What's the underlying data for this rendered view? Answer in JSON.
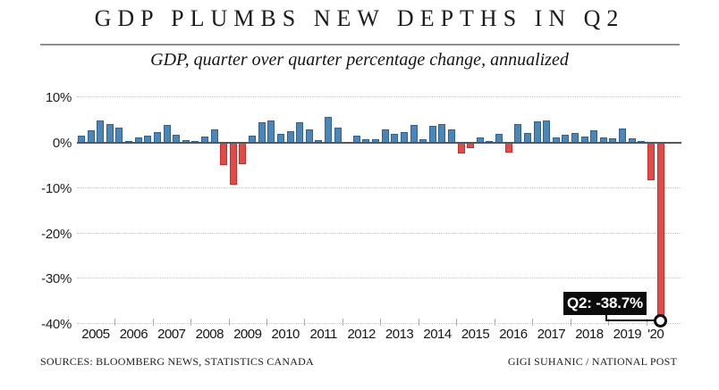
{
  "chart_data": {
    "type": "bar",
    "title": "GDP PLUMBS NEW DEPTHS IN Q2",
    "subtitle": "GDP, quarter over quarter percentage change, annualized",
    "ylim": [
      -42,
      12
    ],
    "grid": "dotted horizontal gridlines at 10% intervals, solid zero axis",
    "legend_position": "none",
    "yticks": [
      {
        "value": 10,
        "label": "10%"
      },
      {
        "value": 0,
        "label": "0%"
      },
      {
        "value": -10,
        "label": "-10%"
      },
      {
        "value": -20,
        "label": "-20%"
      },
      {
        "value": -30,
        "label": "-30%"
      },
      {
        "value": -40,
        "label": "-40%"
      }
    ],
    "gridline_values": [
      10,
      -10,
      -20,
      -30,
      -40
    ],
    "bar_colors": {
      "positive": "#4c86b7",
      "positive_border": "#2f6191",
      "negative": "#e24a47",
      "negative_border": "#c0302f"
    },
    "quarters": [
      "2005 Q1",
      "2005 Q2",
      "2005 Q3",
      "2005 Q4",
      "2006 Q1",
      "2006 Q2",
      "2006 Q3",
      "2006 Q4",
      "2007 Q1",
      "2007 Q2",
      "2007 Q3",
      "2007 Q4",
      "2008 Q1",
      "2008 Q2",
      "2008 Q3",
      "2008 Q4",
      "2009 Q1",
      "2009 Q2",
      "2009 Q3",
      "2009 Q4",
      "2010 Q1",
      "2010 Q2",
      "2010 Q3",
      "2010 Q4",
      "2011 Q1",
      "2011 Q2",
      "2011 Q3",
      "2011 Q4",
      "2012 Q1",
      "2012 Q2",
      "2012 Q3",
      "2012 Q4",
      "2013 Q1",
      "2013 Q2",
      "2013 Q3",
      "2013 Q4",
      "2014 Q1",
      "2014 Q2",
      "2014 Q3",
      "2014 Q4",
      "2015 Q1",
      "2015 Q2",
      "2015 Q3",
      "2015 Q4",
      "2016 Q1",
      "2016 Q2",
      "2016 Q3",
      "2016 Q4",
      "2017 Q1",
      "2017 Q2",
      "2017 Q3",
      "2017 Q4",
      "2018 Q1",
      "2018 Q2",
      "2018 Q3",
      "2018 Q4",
      "2019 Q1",
      "2019 Q2",
      "2019 Q3",
      "2019 Q4",
      "2020 Q1",
      "2020 Q2"
    ],
    "values": [
      1.6,
      2.8,
      5.0,
      4.1,
      3.3,
      0.4,
      1.1,
      1.6,
      2.4,
      3.9,
      1.8,
      0.5,
      0.3,
      1.4,
      2.9,
      -4.9,
      -9.2,
      -4.7,
      1.6,
      4.6,
      4.9,
      2.0,
      2.6,
      4.5,
      2.9,
      0.5,
      5.7,
      3.3,
      0.2,
      1.6,
      0.8,
      0.8,
      2.9,
      2.0,
      2.4,
      4.0,
      0.8,
      3.8,
      4.2,
      2.9,
      -2.4,
      -1.2,
      1.2,
      0.3,
      2.0,
      -2.1,
      4.1,
      2.2,
      4.7,
      4.9,
      1.2,
      1.8,
      2.1,
      1.4,
      2.7,
      1.2,
      1.0,
      3.2,
      1.0,
      0.4,
      -8.2,
      -38.7
    ],
    "year_groups": [
      {
        "label": "2005",
        "quarters": 4
      },
      {
        "label": "2006",
        "quarters": 4
      },
      {
        "label": "2007",
        "quarters": 4
      },
      {
        "label": "2008",
        "quarters": 4
      },
      {
        "label": "2009",
        "quarters": 4
      },
      {
        "label": "2010",
        "quarters": 4
      },
      {
        "label": "2011",
        "quarters": 4
      },
      {
        "label": "2012",
        "quarters": 4
      },
      {
        "label": "2013",
        "quarters": 4
      },
      {
        "label": "2014",
        "quarters": 4
      },
      {
        "label": "2015",
        "quarters": 4
      },
      {
        "label": "2016",
        "quarters": 4
      },
      {
        "label": "2017",
        "quarters": 4
      },
      {
        "label": "2018",
        "quarters": 4
      },
      {
        "label": "2019",
        "quarters": 4
      },
      {
        "label": "'20",
        "quarters": 2
      }
    ],
    "annotation": {
      "text": "Q2: -38.7%",
      "target_quarter": "2020 Q2",
      "target_value": -38.7
    }
  },
  "footer": {
    "sources": "SOURCES: BLOOMBERG NEWS, STATISTICS CANADA",
    "credit": "GIGI SUHANIC / NATIONAL POST"
  }
}
